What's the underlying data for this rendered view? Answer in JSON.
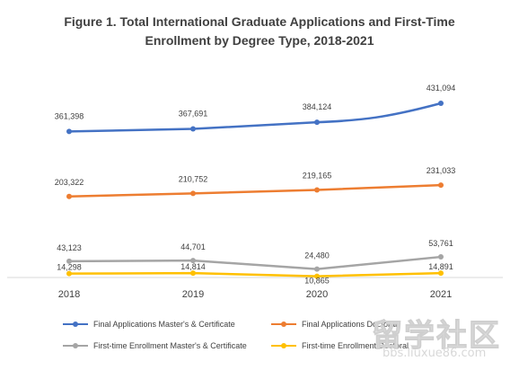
{
  "chart_data": {
    "type": "line",
    "title_line1": "Figure 1. Total International Graduate Applications and First-Time",
    "title_line2": "Enrollment by Degree Type, 2018-2021",
    "categories": [
      "2018",
      "2019",
      "2020",
      "2021"
    ],
    "series": [
      {
        "name": "Final Applications Master's & Certificate",
        "color": "#4472c4",
        "values": [
          361398,
          367691,
          384124,
          431094
        ],
        "labels": [
          "361,398",
          "367,691",
          "384,124",
          "431,094"
        ]
      },
      {
        "name": "Final Applications Doctoral",
        "color": "#ed7d31",
        "values": [
          203322,
          210752,
          219165,
          231033
        ],
        "labels": [
          "203,322",
          "210,752",
          "219,165",
          "231,033"
        ]
      },
      {
        "name": "First-time Enrollment Master's & Certificate",
        "color": "#a5a5a5",
        "values": [
          43123,
          44701,
          24480,
          53761
        ],
        "labels": [
          "43,123",
          "44,701",
          "24,480",
          "53,761"
        ]
      },
      {
        "name": "First-time Enrollment Doctoral",
        "color": "#ffc000",
        "values": [
          14298,
          14814,
          10865,
          14891
        ],
        "labels": [
          "14,298",
          "14,814",
          "10,865",
          "14,891"
        ]
      }
    ],
    "legend_position": "bottom",
    "grid": false
  },
  "watermark": {
    "main": "留学社区",
    "sub": "bbs.liuxue86.com"
  }
}
